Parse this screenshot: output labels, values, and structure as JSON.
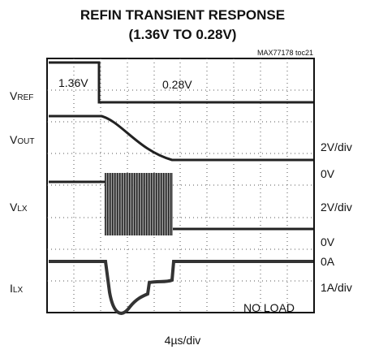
{
  "title": [
    "REFIN TRANSIENT RESPONSE",
    "(1.36V TO 0.28V)"
  ],
  "figure_id": "MAX77178 toc21",
  "trace_labels": [
    {
      "main": "V",
      "sub": "REF"
    },
    {
      "main": "V",
      "sub": "OUT"
    },
    {
      "main": "V",
      "sub": "LX"
    },
    {
      "main": "I",
      "sub": "LX"
    }
  ],
  "scale_labels": [
    "2V/div",
    "0V",
    "2V/div",
    "0V",
    "0A",
    "1A/div"
  ],
  "annotations": [
    "1.36V",
    "0.28V",
    "NO LOAD"
  ],
  "time_scale": "4µs/div"
}
